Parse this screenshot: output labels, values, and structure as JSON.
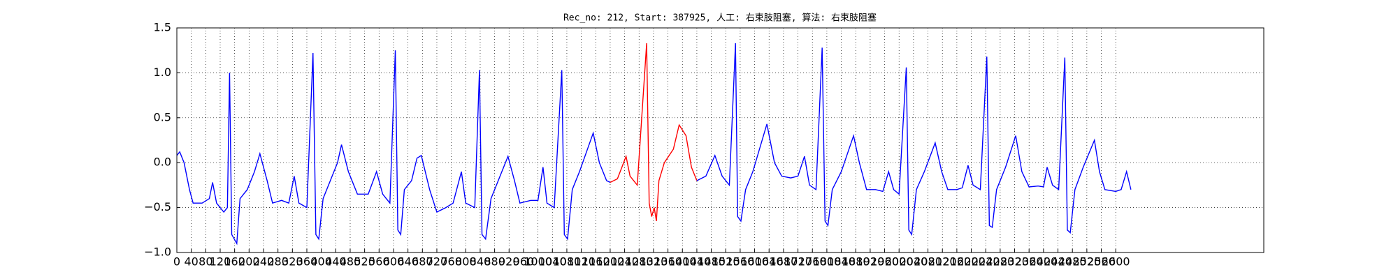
{
  "chart_data": {
    "type": "line",
    "title": "Rec_no: 212, Start: 387925, 人工: 右束肢阻塞, 算法: 右束肢阻塞",
    "xlim": [
      0,
      3010
    ],
    "xticks": [
      0,
      40,
      80,
      120,
      160,
      200,
      240,
      280,
      320,
      360,
      400,
      440,
      480,
      520,
      560,
      600,
      640,
      680,
      720,
      760,
      800,
      840,
      880,
      920,
      960,
      1000,
      1040,
      1080,
      1120,
      1160,
      1200,
      1240,
      1280,
      1320,
      1360,
      1400,
      1440,
      1480,
      1520,
      1560,
      1600,
      1640,
      1680,
      1720,
      1760,
      1800,
      1840,
      1880,
      1920,
      1960,
      2000,
      2040,
      2080,
      2120,
      2160,
      2200,
      2240,
      2280,
      2320,
      2360,
      2400,
      2440,
      2480,
      2520,
      2560,
      2600
    ],
    "ylim": [
      -1.0,
      1.5
    ],
    "yticks": [
      {
        "value": -1.0,
        "label": "−1.0"
      },
      {
        "value": -0.5,
        "label": "−0.5"
      },
      {
        "value": 0,
        "label": "0.0"
      },
      {
        "value": 0.5,
        "label": "0.5"
      },
      {
        "value": 1.0,
        "label": "1.0"
      },
      {
        "value": 1.5,
        "label": "1.5"
      }
    ],
    "grid": true,
    "series": [
      {
        "color": "#0000ff",
        "x": [
          0,
          8,
          20,
          35,
          45,
          70,
          90,
          99,
          110,
          130,
          140,
          146,
          152,
          166,
          175,
          195,
          215,
          230,
          250,
          265,
          290,
          310,
          325,
          338,
          360,
          377,
          385,
          393,
          405,
          425,
          445,
          456,
          475,
          500,
          530,
          553,
          570,
          590,
          605,
          612,
          620,
          630,
          650,
          665,
          677,
          700,
          720,
          745,
          765,
          788,
          800,
          825,
          838,
          845,
          855,
          870,
          890,
          917,
          935,
          950,
          980,
          1000,
          1014,
          1025,
          1045,
          1066,
          1073,
          1082,
          1095,
          1115,
          1153,
          1170,
          1190,
          1200
        ],
        "values": [
          0.08,
          0.12,
          0.0,
          -0.3,
          -0.45,
          -0.45,
          -0.4,
          -0.22,
          -0.45,
          -0.55,
          -0.5,
          1.0,
          -0.8,
          -0.9,
          -0.4,
          -0.3,
          -0.1,
          0.1,
          -0.2,
          -0.45,
          -0.42,
          -0.45,
          -0.15,
          -0.45,
          -0.5,
          1.22,
          -0.8,
          -0.85,
          -0.4,
          -0.2,
          0.0,
          0.2,
          -0.1,
          -0.35,
          -0.35,
          -0.1,
          -0.35,
          -0.45,
          1.25,
          -0.75,
          -0.8,
          -0.3,
          -0.2,
          0.05,
          0.08,
          -0.3,
          -0.55,
          -0.5,
          -0.45,
          -0.1,
          -0.45,
          -0.5,
          1.03,
          -0.8,
          -0.85,
          -0.4,
          -0.2,
          0.07,
          -0.2,
          -0.45,
          -0.42,
          -0.42,
          -0.05,
          -0.45,
          -0.5,
          1.03,
          -0.8,
          -0.85,
          -0.3,
          -0.1,
          0.33,
          0.0,
          -0.2,
          -0.22
        ]
      },
      {
        "color": "#ff0000",
        "x": [
          1200,
          1220,
          1244,
          1255,
          1275,
          1301,
          1308,
          1315,
          1322,
          1328,
          1335,
          1350,
          1375,
          1391,
          1410,
          1425,
          1440
        ],
        "values": [
          -0.22,
          -0.18,
          0.07,
          -0.15,
          -0.25,
          1.33,
          -0.45,
          -0.6,
          -0.5,
          -0.65,
          -0.2,
          0.0,
          0.15,
          0.42,
          0.3,
          -0.05,
          -0.2
        ]
      },
      {
        "color": "#0000ff",
        "x": [
          1440,
          1465,
          1490,
          1510,
          1530,
          1547,
          1553,
          1562,
          1575,
          1595,
          1634,
          1655,
          1675,
          1700,
          1720,
          1738,
          1752,
          1770,
          1787,
          1795,
          1803,
          1815,
          1840,
          1874,
          1890,
          1910,
          1935,
          1955,
          1971,
          1985,
          2000,
          2020,
          2027,
          2035,
          2048,
          2070,
          2100,
          2118,
          2135,
          2160,
          2175,
          2191,
          2205,
          2225,
          2243,
          2250,
          2258,
          2270,
          2295,
          2323,
          2340,
          2360,
          2385,
          2400,
          2410,
          2425,
          2442,
          2459,
          2466,
          2474,
          2487,
          2510,
          2541,
          2555,
          2570,
          2600,
          2615,
          2630,
          2642
        ],
        "values": [
          -0.2,
          -0.15,
          0.08,
          -0.15,
          -0.25,
          1.33,
          -0.6,
          -0.65,
          -0.3,
          -0.1,
          0.43,
          0.0,
          -0.15,
          -0.17,
          -0.15,
          0.07,
          -0.25,
          -0.3,
          1.28,
          -0.65,
          -0.7,
          -0.3,
          -0.1,
          0.3,
          0.0,
          -0.3,
          -0.3,
          -0.32,
          -0.1,
          -0.3,
          -0.35,
          1.06,
          -0.75,
          -0.8,
          -0.3,
          -0.1,
          0.22,
          -0.1,
          -0.3,
          -0.3,
          -0.28,
          -0.03,
          -0.25,
          -0.3,
          1.18,
          -0.7,
          -0.72,
          -0.3,
          -0.05,
          0.3,
          -0.1,
          -0.27,
          -0.26,
          -0.27,
          -0.05,
          -0.25,
          -0.3,
          1.17,
          -0.75,
          -0.78,
          -0.3,
          -0.05,
          0.25,
          -0.1,
          -0.3,
          -0.32,
          -0.3,
          -0.1,
          -0.3
        ]
      }
    ]
  }
}
